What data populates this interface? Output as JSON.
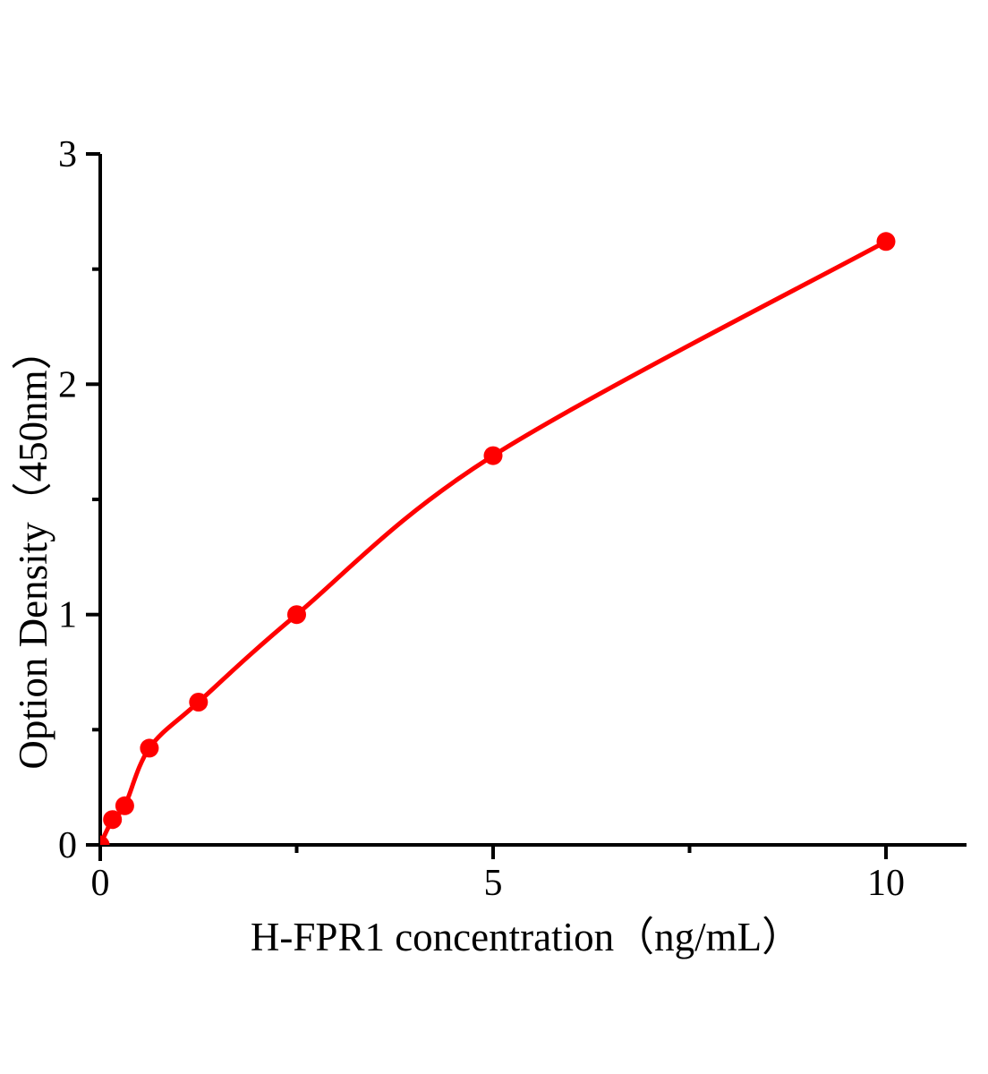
{
  "figure": {
    "background_color": "#ffffff"
  },
  "chart_data": {
    "type": "scatter",
    "title": "",
    "xlabel": "H-FPR1 concentration（ng/mL）",
    "ylabel": "Option Density（450nm）",
    "x": [
      0,
      0.156,
      0.3125,
      0.625,
      1.25,
      2.5,
      5,
      10
    ],
    "y": [
      0,
      0.11,
      0.17,
      0.42,
      0.62,
      1.0,
      1.69,
      2.62
    ],
    "xlim": [
      0,
      10
    ],
    "ylim": [
      0,
      3
    ],
    "x_major_ticks": [
      0,
      5,
      10
    ],
    "x_minor_ticks": [
      2.5,
      7.5
    ],
    "y_major_ticks": [
      0,
      1,
      2,
      3
    ],
    "y_minor_ticks": [
      0.5,
      1.5,
      2.5
    ],
    "grid": false,
    "legend": false,
    "curve_style": "smooth",
    "line_color": "#ff0000",
    "marker_color": "#ff0000",
    "axis_color": "#000000"
  }
}
